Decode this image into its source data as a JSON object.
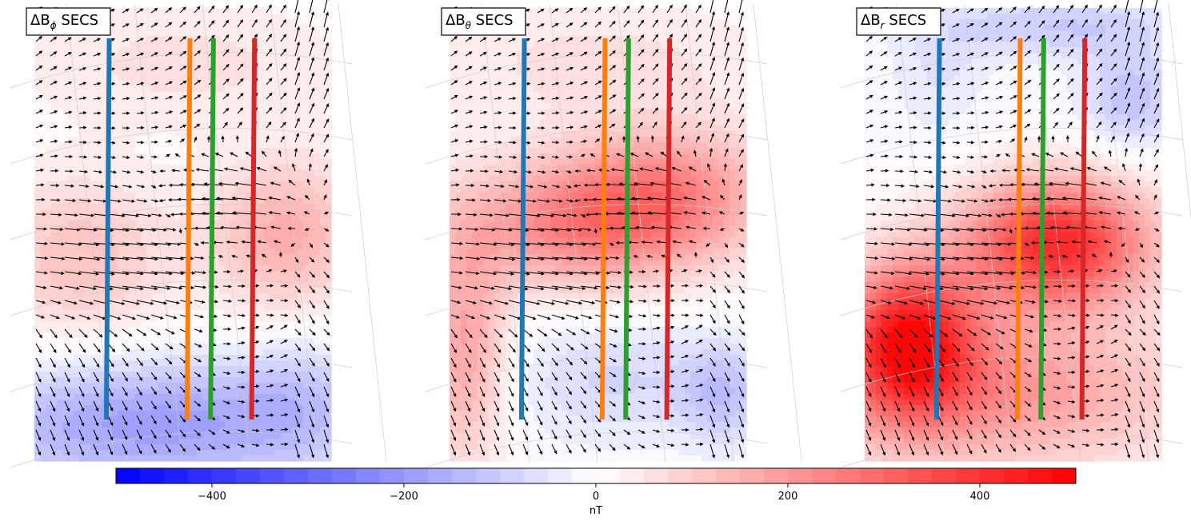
{
  "chart_data": {
    "type": "heatmap",
    "panels": [
      {
        "title_main": "ΔB",
        "title_sub": "ϕ",
        "title_tail": " SECS",
        "component": "phi",
        "blobs": [
          {
            "cx": 0.15,
            "cy": 0.55,
            "sx": 0.22,
            "sy": 0.13,
            "amp": 120
          },
          {
            "cx": 0.85,
            "cy": 0.5,
            "sx": 0.18,
            "sy": 0.12,
            "amp": 160
          },
          {
            "cx": 0.5,
            "cy": 0.12,
            "sx": 0.4,
            "sy": 0.1,
            "amp": 60
          },
          {
            "cx": 0.4,
            "cy": 0.92,
            "sx": 0.45,
            "sy": 0.1,
            "amp": -190
          },
          {
            "cx": 0.9,
            "cy": 0.85,
            "sx": 0.15,
            "sy": 0.1,
            "amp": -60
          }
        ]
      },
      {
        "title_main": "ΔB",
        "title_sub": "θ",
        "title_tail": " SECS",
        "component": "theta",
        "blobs": [
          {
            "cx": 0.45,
            "cy": 0.48,
            "sx": 0.3,
            "sy": 0.1,
            "amp": 230
          },
          {
            "cx": 0.75,
            "cy": 0.4,
            "sx": 0.25,
            "sy": 0.1,
            "amp": 180
          },
          {
            "cx": 0.05,
            "cy": 0.75,
            "sx": 0.1,
            "sy": 0.18,
            "amp": 180
          },
          {
            "cx": 0.5,
            "cy": 0.12,
            "sx": 0.45,
            "sy": 0.1,
            "amp": 60
          },
          {
            "cx": 0.55,
            "cy": 0.82,
            "sx": 0.25,
            "sy": 0.1,
            "amp": -80
          },
          {
            "cx": 0.92,
            "cy": 0.85,
            "sx": 0.1,
            "sy": 0.08,
            "amp": -110
          }
        ]
      },
      {
        "title_main": "ΔB",
        "title_sub": "r",
        "title_tail": " SECS",
        "component": "r",
        "blobs": [
          {
            "cx": 0.15,
            "cy": 0.73,
            "sx": 0.16,
            "sy": 0.12,
            "amp": 430
          },
          {
            "cx": 0.65,
            "cy": 0.52,
            "sx": 0.22,
            "sy": 0.1,
            "amp": 420
          },
          {
            "cx": 0.45,
            "cy": 0.85,
            "sx": 0.45,
            "sy": 0.12,
            "amp": 200
          },
          {
            "cx": 0.9,
            "cy": 0.2,
            "sx": 0.12,
            "sy": 0.08,
            "amp": -120
          },
          {
            "cx": 0.65,
            "cy": 0.04,
            "sx": 0.3,
            "sy": 0.05,
            "amp": -100
          },
          {
            "cx": 0.25,
            "cy": 0.15,
            "sx": 0.12,
            "sy": 0.1,
            "amp": -50
          }
        ]
      }
    ],
    "tracks": [
      {
        "color": "#1f77b4",
        "x_top": 0.255,
        "x_bottom": 0.245
      },
      {
        "color": "#ff7f0e",
        "x_top": 0.53,
        "x_bottom": 0.52
      },
      {
        "color": "#2ca02c",
        "x_top": 0.61,
        "x_bottom": 0.6
      },
      {
        "color": "#d62728",
        "x_top": 0.75,
        "x_bottom": 0.74
      }
    ],
    "colorbar": {
      "label": "nT",
      "min": -500,
      "max": 500,
      "ticks": [
        -400,
        -200,
        0,
        200,
        400
      ],
      "tick_labels": [
        "−400",
        "−200",
        "0",
        "200",
        "400"
      ],
      "levels": 40,
      "colormap": "bwr",
      "color_min": "#0000ff",
      "color_mid": "#ffffff",
      "color_max": "#ff0000"
    },
    "vector_field": {
      "color": "#000000"
    }
  }
}
